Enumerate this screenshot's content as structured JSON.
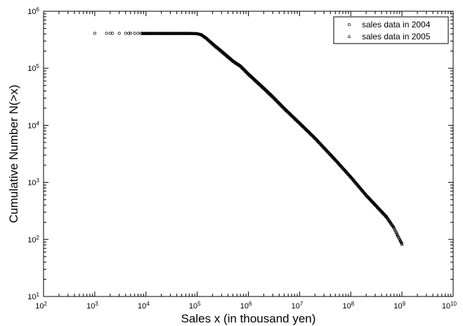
{
  "chart_data": {
    "type": "scatter",
    "title": "",
    "xlabel": "Sales x (in thousand yen)",
    "ylabel": "Cumulative Number N(>x)",
    "xscale": "log",
    "yscale": "log",
    "xlim": [
      100,
      10000000000
    ],
    "ylim": [
      10,
      1000000
    ],
    "grid": false,
    "legend_position": "top-right",
    "x_ticks": [
      {
        "value": 100,
        "base": "10",
        "exp": "2"
      },
      {
        "value": 1000,
        "base": "10",
        "exp": "3"
      },
      {
        "value": 10000,
        "base": "10",
        "exp": "4"
      },
      {
        "value": 100000,
        "base": "10",
        "exp": "5"
      },
      {
        "value": 1000000,
        "base": "10",
        "exp": "6"
      },
      {
        "value": 10000000,
        "base": "10",
        "exp": "7"
      },
      {
        "value": 100000000,
        "base": "10",
        "exp": "8"
      },
      {
        "value": 1000000000,
        "base": "10",
        "exp": "9"
      },
      {
        "value": 10000000000,
        "base": "10",
        "exp": "10"
      }
    ],
    "y_ticks": [
      {
        "value": 10,
        "base": "10",
        "exp": "1"
      },
      {
        "value": 100,
        "base": "10",
        "exp": "2"
      },
      {
        "value": 1000,
        "base": "10",
        "exp": "3"
      },
      {
        "value": 10000,
        "base": "10",
        "exp": "4"
      },
      {
        "value": 100000,
        "base": "10",
        "exp": "5"
      },
      {
        "value": 1000000,
        "base": "10",
        "exp": "6"
      }
    ],
    "series": [
      {
        "name": "sales data in 2004",
        "marker": "circle",
        "color": "#000000",
        "x": [
          1000,
          1700,
          2000,
          2200,
          3000,
          4000,
          4600,
          5000,
          6000,
          7000,
          8000,
          8500,
          9000,
          9500,
          10000,
          12000,
          15000,
          20000,
          30000,
          50000,
          70000,
          100000,
          120000,
          150000,
          200000,
          300000,
          500000,
          700000,
          1000000,
          2000000,
          3000000,
          5000000,
          10000000,
          20000000,
          50000000,
          100000000,
          200000000,
          500000000,
          700000000,
          800000000,
          900000000,
          1000000000
        ],
        "y": [
          410000,
          410000,
          410000,
          410000,
          410000,
          410000,
          410000,
          410000,
          410000,
          410000,
          410000,
          410000,
          410000,
          410000,
          410000,
          410000,
          410000,
          410000,
          410000,
          410000,
          410000,
          405000,
          390000,
          340000,
          270000,
          200000,
          135000,
          110000,
          80000,
          45000,
          32000,
          20000,
          11000,
          6000,
          2500,
          1250,
          600,
          250,
          160,
          125,
          100,
          85
        ]
      },
      {
        "name": "sales data in 2005",
        "marker": "triangle",
        "color": "#000000",
        "x": [
          8500,
          9000,
          10000,
          15000,
          20000,
          30000,
          50000,
          70000,
          100000,
          120000,
          150000,
          200000,
          300000,
          500000,
          700000,
          1000000,
          2000000,
          3000000,
          5000000,
          10000000,
          20000000,
          50000000,
          100000000,
          200000000,
          500000000,
          700000000,
          800000000,
          900000000,
          1000000000
        ],
        "y": [
          405000,
          405000,
          405000,
          405000,
          405000,
          405000,
          405000,
          405000,
          402000,
          385000,
          335000,
          265000,
          195000,
          132000,
          108000,
          78000,
          44000,
          31000,
          19500,
          10800,
          5900,
          2450,
          1230,
          590,
          245,
          158,
          122,
          100,
          82
        ]
      }
    ]
  }
}
